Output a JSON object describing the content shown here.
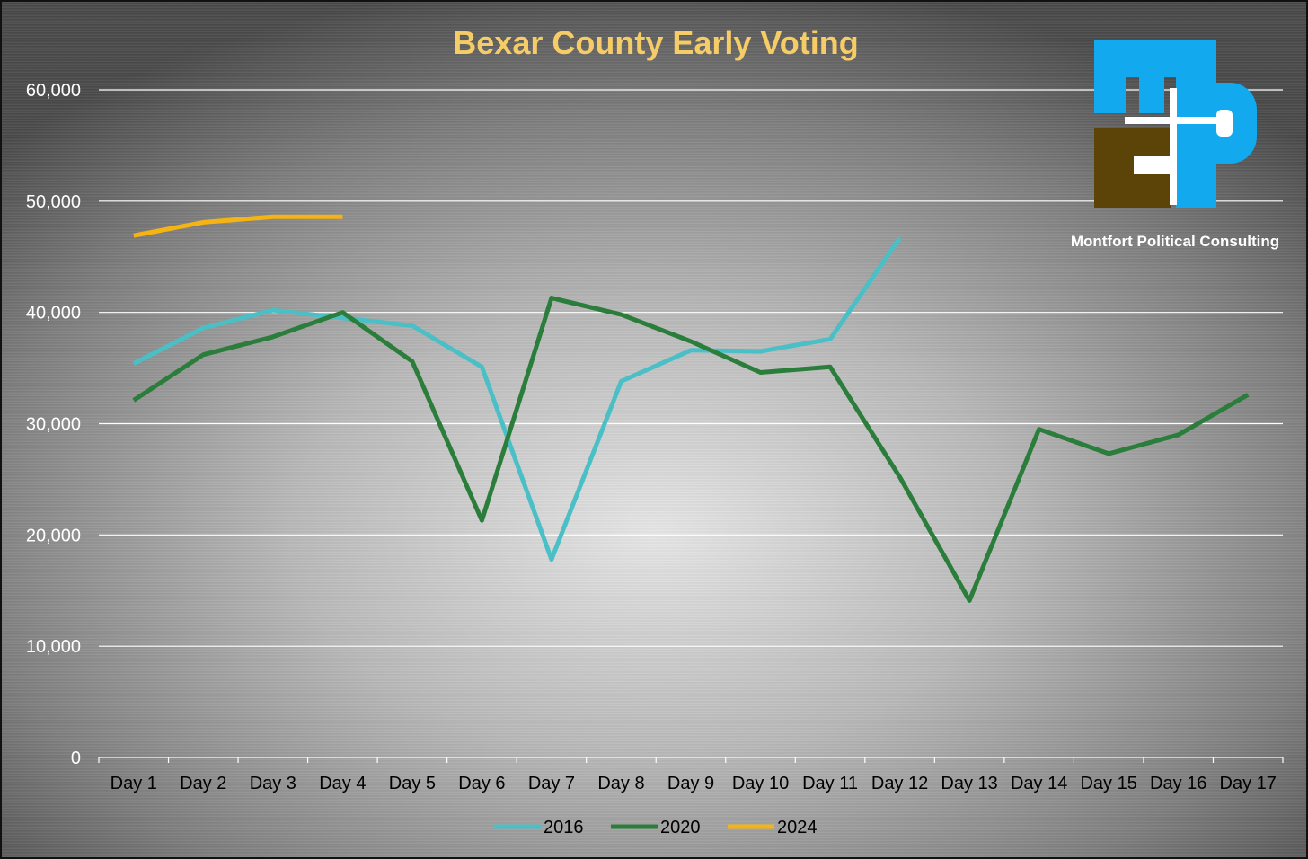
{
  "chart_data": {
    "type": "line",
    "title": "Bexar County Early Voting",
    "xlabel": "",
    "ylabel": "",
    "ylim": [
      0,
      60000
    ],
    "yticks": [
      0,
      10000,
      20000,
      30000,
      40000,
      50000,
      60000
    ],
    "ytick_labels": [
      "0",
      "10,000",
      "20,000",
      "30,000",
      "40,000",
      "50,000",
      "60,000"
    ],
    "categories": [
      "Day 1",
      "Day 2",
      "Day 3",
      "Day 4",
      "Day 5",
      "Day 6",
      "Day 7",
      "Day 8",
      "Day 9",
      "Day 10",
      "Day 11",
      "Day 12",
      "Day 13",
      "Day 14",
      "Day 15",
      "Day 16",
      "Day 17"
    ],
    "grid": true,
    "legend_position": "bottom",
    "series": [
      {
        "name": "2016",
        "color": "#4bbfc6",
        "values": [
          35400,
          38600,
          40200,
          39500,
          38800,
          35100,
          17800,
          33800,
          36600,
          36500,
          37600,
          46700,
          null,
          null,
          null,
          null,
          null
        ]
      },
      {
        "name": "2020",
        "color": "#2a7d3a",
        "values": [
          32100,
          36200,
          37800,
          40000,
          35600,
          21300,
          41300,
          39800,
          37400,
          34600,
          35100,
          25200,
          14100,
          29500,
          27300,
          29000,
          32600
        ]
      },
      {
        "name": "2024",
        "color": "#f5b414",
        "values": [
          46900,
          48100,
          48600,
          48600,
          null,
          null,
          null,
          null,
          null,
          null,
          null,
          null,
          null,
          null,
          null,
          null,
          null
        ]
      }
    ]
  },
  "logo": {
    "caption": "Montfort Political Consulting",
    "colors": {
      "blue": "#12a9ee",
      "brown": "#5c4409"
    }
  }
}
